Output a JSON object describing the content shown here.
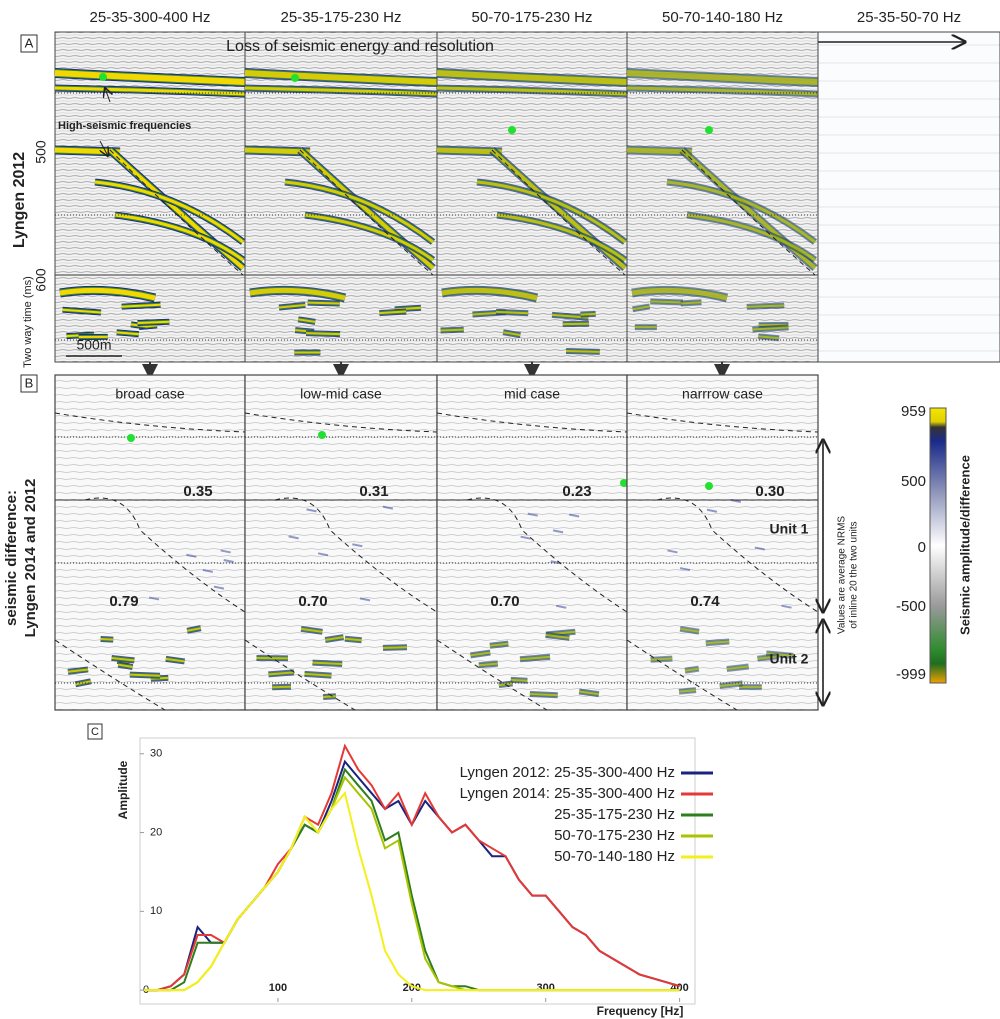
{
  "column_headers": [
    "25-35-300-400 Hz",
    "25-35-175-230 Hz",
    "50-70-175-230 Hz",
    "50-70-140-180 Hz",
    "25-35-50-70 Hz"
  ],
  "panel_a": {
    "label": "A",
    "arrow_text": "Loss of seismic energy and resolution",
    "annotation": "High-seismic frequencies",
    "y_axis_title": "Lyngen 2012",
    "time_labels": [
      "500",
      "600"
    ],
    "time_axis_label": "Two way time (ms)",
    "scale_bar": "500m"
  },
  "panel_b": {
    "label": "B",
    "y_axis_title": [
      "seismic difference:",
      "Lyngen 2014 and 2012"
    ],
    "cases": [
      {
        "name": "broad case",
        "unit1": "0.35",
        "unit2": "0.79"
      },
      {
        "name": "low-mid case",
        "unit1": "0.31",
        "unit2": "0.70"
      },
      {
        "name": "mid case",
        "unit1": "0.23",
        "unit2": "0.70"
      },
      {
        "name": "narrrow case",
        "unit1": "0.30",
        "unit2": "0.74"
      }
    ],
    "unit_labels": [
      "Unit 1",
      "Unit 2"
    ],
    "note": [
      "Values are average NRMS",
      "of inline 20 the two units"
    ]
  },
  "colorbar": {
    "title": "Seismic amplitude/difference",
    "ticks": [
      "959",
      "500",
      "0",
      "-500",
      "-999"
    ]
  },
  "panel_c_label": "C",
  "chart_data": {
    "type": "line",
    "xlabel": "Frequency [Hz]",
    "ylabel": "Amplitude",
    "xlim": [
      0,
      410
    ],
    "ylim": [
      -1,
      32
    ],
    "xticks": [
      100,
      200,
      300,
      400
    ],
    "yticks": [
      0,
      10,
      20,
      30
    ],
    "x": [
      0,
      10,
      20,
      30,
      40,
      50,
      60,
      70,
      80,
      90,
      100,
      110,
      120,
      130,
      140,
      150,
      160,
      170,
      180,
      190,
      200,
      210,
      220,
      230,
      240,
      250,
      260,
      270,
      280,
      290,
      300,
      310,
      320,
      330,
      340,
      350,
      360,
      370,
      380,
      390,
      400
    ],
    "series": [
      {
        "name": "Lyngen 2012: 25-35-300-400 Hz",
        "color": "#1a237e",
        "values": [
          0,
          0,
          0.5,
          2,
          8,
          6,
          6,
          9,
          11,
          13,
          15,
          18,
          21,
          20,
          24,
          29,
          27,
          25,
          23,
          24,
          21,
          24,
          22,
          20,
          21,
          19,
          17,
          17,
          14,
          12,
          12,
          10,
          8,
          7,
          5,
          4,
          3,
          2,
          1.5,
          1,
          0.5
        ]
      },
      {
        "name": "Lyngen 2014: 25-35-300-400 Hz",
        "color": "#e53935",
        "values": [
          0,
          0,
          0.5,
          2,
          7,
          7,
          6,
          9,
          11,
          13,
          16,
          18,
          22,
          21,
          25,
          31,
          28,
          26,
          23,
          25,
          21,
          25,
          22,
          20,
          21,
          19,
          18,
          17,
          14,
          12,
          12,
          10,
          8,
          7,
          5,
          4,
          3,
          2,
          1.5,
          1,
          0.5
        ]
      },
      {
        "name": "25-35-175-230 Hz",
        "color": "#2e7d1e",
        "values": [
          0,
          0,
          0,
          1,
          6,
          6,
          6,
          9,
          11,
          13,
          15,
          18,
          21,
          20,
          23,
          28,
          26,
          24,
          19,
          20,
          12,
          5,
          1,
          0.5,
          0.5,
          0,
          0,
          0,
          0,
          0,
          0,
          0,
          0,
          0,
          0,
          0,
          0,
          0,
          0,
          0,
          0
        ]
      },
      {
        "name": "50-70-175-230 Hz",
        "color": "#a8c400",
        "values": [
          0,
          0,
          0,
          0,
          1,
          3,
          6,
          9,
          11,
          13,
          15,
          18,
          22,
          20,
          23,
          27,
          25,
          23,
          18,
          19,
          11,
          4,
          1,
          0.5,
          0,
          0,
          0,
          0,
          0,
          0,
          0,
          0,
          0,
          0,
          0,
          0,
          0,
          0,
          0,
          0,
          0
        ]
      },
      {
        "name": "50-70-140-180 Hz",
        "color": "#f5ef1a",
        "values": [
          0,
          0,
          0,
          0,
          1,
          3,
          6,
          9,
          11,
          13,
          15,
          18,
          22,
          20,
          23,
          25,
          18,
          12,
          5,
          2,
          0.5,
          0,
          0,
          0,
          0,
          0,
          0,
          0,
          0,
          0,
          0,
          0,
          0,
          0,
          0,
          0,
          0,
          0,
          0,
          0,
          0
        ]
      }
    ]
  }
}
